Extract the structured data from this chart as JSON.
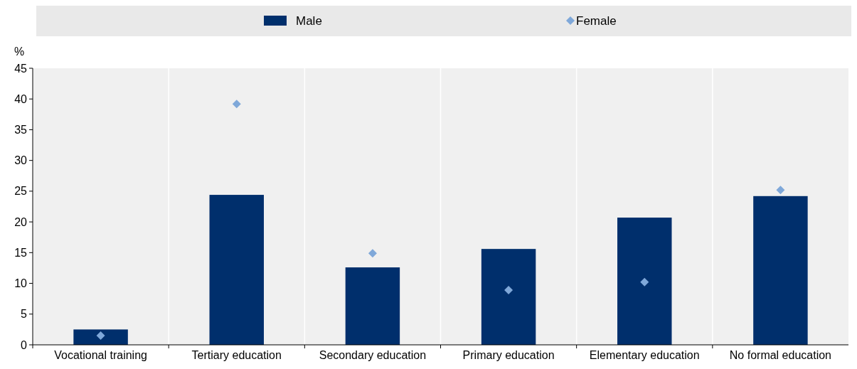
{
  "chart_data": {
    "type": "bar",
    "ylabel": "%",
    "categories": [
      "Vocational training",
      "Tertiary education",
      "Secondary education",
      "Primary education",
      "Elementary education",
      "No formal education"
    ],
    "series": [
      {
        "name": "Male",
        "color": "#002f6c",
        "values": [
          2.5,
          24.4,
          12.6,
          15.6,
          20.7,
          24.2
        ]
      },
      {
        "name": "Female",
        "type": "scatter",
        "color": "#7fa8d9",
        "marker": "diamond",
        "x": [
          "Vocational training",
          "Tertiary education",
          "Secondary education",
          "Primary education",
          "Elementary education",
          "No formal education"
        ],
        "values": [
          1.5,
          39.2,
          14.9,
          8.9,
          10.2,
          25.2
        ]
      }
    ],
    "ylim": [
      0,
      45
    ],
    "yticks": [
      0,
      5,
      10,
      15,
      20,
      25,
      30,
      35,
      40,
      45
    ],
    "grid": "x",
    "legend": "top"
  }
}
